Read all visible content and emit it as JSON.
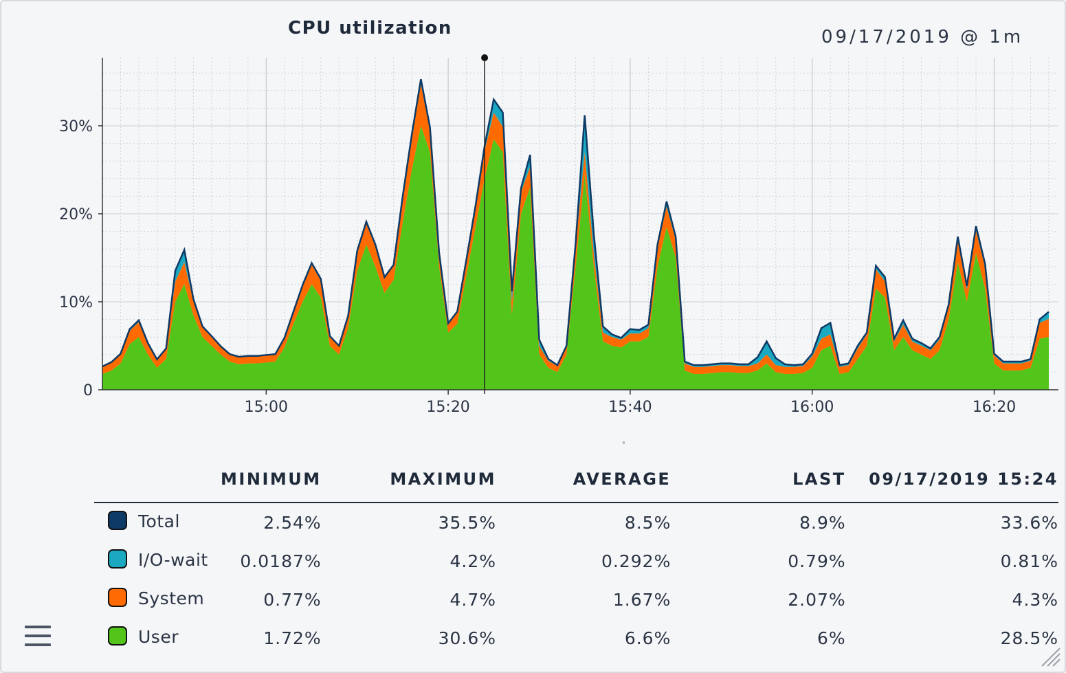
{
  "header": {
    "title": "CPU utilization",
    "timestamp": "09/17/2019 @ 1m"
  },
  "chart_data": {
    "type": "area",
    "stacked": true,
    "title": "CPU utilization",
    "xlabel": "",
    "ylabel": "",
    "x_ticks": [
      "15:00",
      "15:20",
      "15:40",
      "16:00",
      "16:20"
    ],
    "y_ticks": [
      "0",
      "10%",
      "20%",
      "30%"
    ],
    "ylim": [
      0,
      38
    ],
    "x_start": "14:42",
    "x_step_minutes": 1,
    "cursor": "15:24",
    "grid": true,
    "series": [
      {
        "name": "User",
        "color": "#52c41a",
        "values": [
          1.8,
          2.2,
          3,
          5.2,
          6,
          4,
          2.5,
          3.5,
          10,
          12,
          8.5,
          6,
          5,
          4,
          3.2,
          2.9,
          3,
          3,
          3.1,
          3.2,
          4.8,
          7.5,
          10,
          12,
          10.5,
          5,
          4,
          7,
          13.5,
          16.5,
          14,
          11,
          12.5,
          19,
          25,
          30,
          27,
          14,
          6.5,
          7.5,
          13,
          18.5,
          24,
          28.5,
          27,
          8.5,
          20,
          23,
          4,
          2.5,
          2,
          4,
          14,
          24.5,
          14,
          5.5,
          5,
          4.8,
          5.5,
          5.5,
          6,
          14,
          18.5,
          15,
          2.2,
          1.8,
          1.8,
          1.9,
          2,
          2,
          1.9,
          1.9,
          2.2,
          3,
          2,
          1.8,
          1.8,
          1.9,
          2.5,
          4.5,
          5,
          1.8,
          2,
          3.5,
          5,
          11.5,
          10.5,
          4.5,
          6,
          4.5,
          4,
          3.5,
          4.5,
          8,
          14.5,
          10,
          15.5,
          11.5,
          3,
          2.2,
          2.2,
          2.2,
          2.5,
          5.8,
          6
        ]
      },
      {
        "name": "System",
        "color": "#ff6b00",
        "values": [
          0.8,
          0.9,
          1,
          1.5,
          1.7,
          1.2,
          0.9,
          1.1,
          2.3,
          2.5,
          1.6,
          1.1,
          1,
          0.9,
          0.8,
          0.8,
          0.8,
          0.8,
          0.8,
          0.8,
          1,
          1.3,
          1.8,
          2.2,
          1.9,
          1,
          0.9,
          1.3,
          2.2,
          2.4,
          2.3,
          1.7,
          1.6,
          2.8,
          3.8,
          4.7,
          2.5,
          1.5,
          1,
          1.3,
          1.7,
          2.2,
          3.2,
          3,
          2.9,
          1.5,
          2.5,
          2.3,
          1,
          0.8,
          0.7,
          0.8,
          2.2,
          2.5,
          1.5,
          1,
          1,
          0.9,
          0.9,
          0.9,
          1,
          2.2,
          2.3,
          2,
          0.8,
          0.8,
          0.8,
          0.8,
          0.8,
          0.8,
          0.8,
          0.8,
          0.8,
          1,
          0.8,
          0.8,
          0.8,
          0.8,
          1.3,
          1.3,
          1.3,
          0.8,
          0.8,
          1.2,
          1.3,
          2.2,
          1.8,
          1,
          1.4,
          1,
          1,
          1,
          1.2,
          1.4,
          2.4,
          1.4,
          2.6,
          2.4,
          0.9,
          0.8,
          0.8,
          0.8,
          0.8,
          1.8,
          2.07
        ]
      },
      {
        "name": "I/O-wait",
        "color": "#1aa9c0",
        "values": [
          0.05,
          0.05,
          0.1,
          0.2,
          0.2,
          0.1,
          0.05,
          0.1,
          1.2,
          1.4,
          0.2,
          0.1,
          0.1,
          0.05,
          0.05,
          0.05,
          0.05,
          0.05,
          0.05,
          0.05,
          0.1,
          0.1,
          0.1,
          0.2,
          0.2,
          0.1,
          0.1,
          0.1,
          0.1,
          0.2,
          0.2,
          0.1,
          0.1,
          0.2,
          0.2,
          0.6,
          0.3,
          0.1,
          0.05,
          0.1,
          0.1,
          0.2,
          0.5,
          1.5,
          1.6,
          1.2,
          0.4,
          1.4,
          0.7,
          0.2,
          0.1,
          0.2,
          0.4,
          4.2,
          2.2,
          0.7,
          0.3,
          0.2,
          0.5,
          0.4,
          0.4,
          0.3,
          0.6,
          0.4,
          0.2,
          0.2,
          0.2,
          0.2,
          0.2,
          0.2,
          0.2,
          0.2,
          0.7,
          1.5,
          0.8,
          0.3,
          0.2,
          0.2,
          0.3,
          1.2,
          1.3,
          0.2,
          0.2,
          0.3,
          0.2,
          0.4,
          0.5,
          0.3,
          0.5,
          0.3,
          0.3,
          0.2,
          0.3,
          0.3,
          0.5,
          0.4,
          0.5,
          0.4,
          0.2,
          0.2,
          0.2,
          0.2,
          0.2,
          0.4,
          0.79
        ]
      }
    ]
  },
  "table": {
    "columns": [
      "",
      "MINIMUM",
      "MAXIMUM",
      "AVERAGE",
      "LAST",
      "09/17/2019 15:24"
    ],
    "rows": [
      {
        "name": "Total",
        "color": "#0d3a66",
        "values": [
          "2.54%",
          "35.5%",
          "8.5%",
          "8.9%",
          "33.6%"
        ]
      },
      {
        "name": "I/O-wait",
        "color": "#1aa9c0",
        "values": [
          "0.0187%",
          "4.2%",
          "0.292%",
          "0.79%",
          "0.81%"
        ]
      },
      {
        "name": "System",
        "color": "#ff6b00",
        "values": [
          "0.77%",
          "4.7%",
          "1.67%",
          "2.07%",
          "4.3%"
        ]
      },
      {
        "name": "User",
        "color": "#52c41a",
        "values": [
          "1.72%",
          "30.6%",
          "6.6%",
          "6%",
          "28.5%"
        ]
      }
    ]
  },
  "total_color": "#0d3a66",
  "icons": {
    "menu": "hamburger-menu-icon",
    "resize": "resize-handle-icon"
  }
}
